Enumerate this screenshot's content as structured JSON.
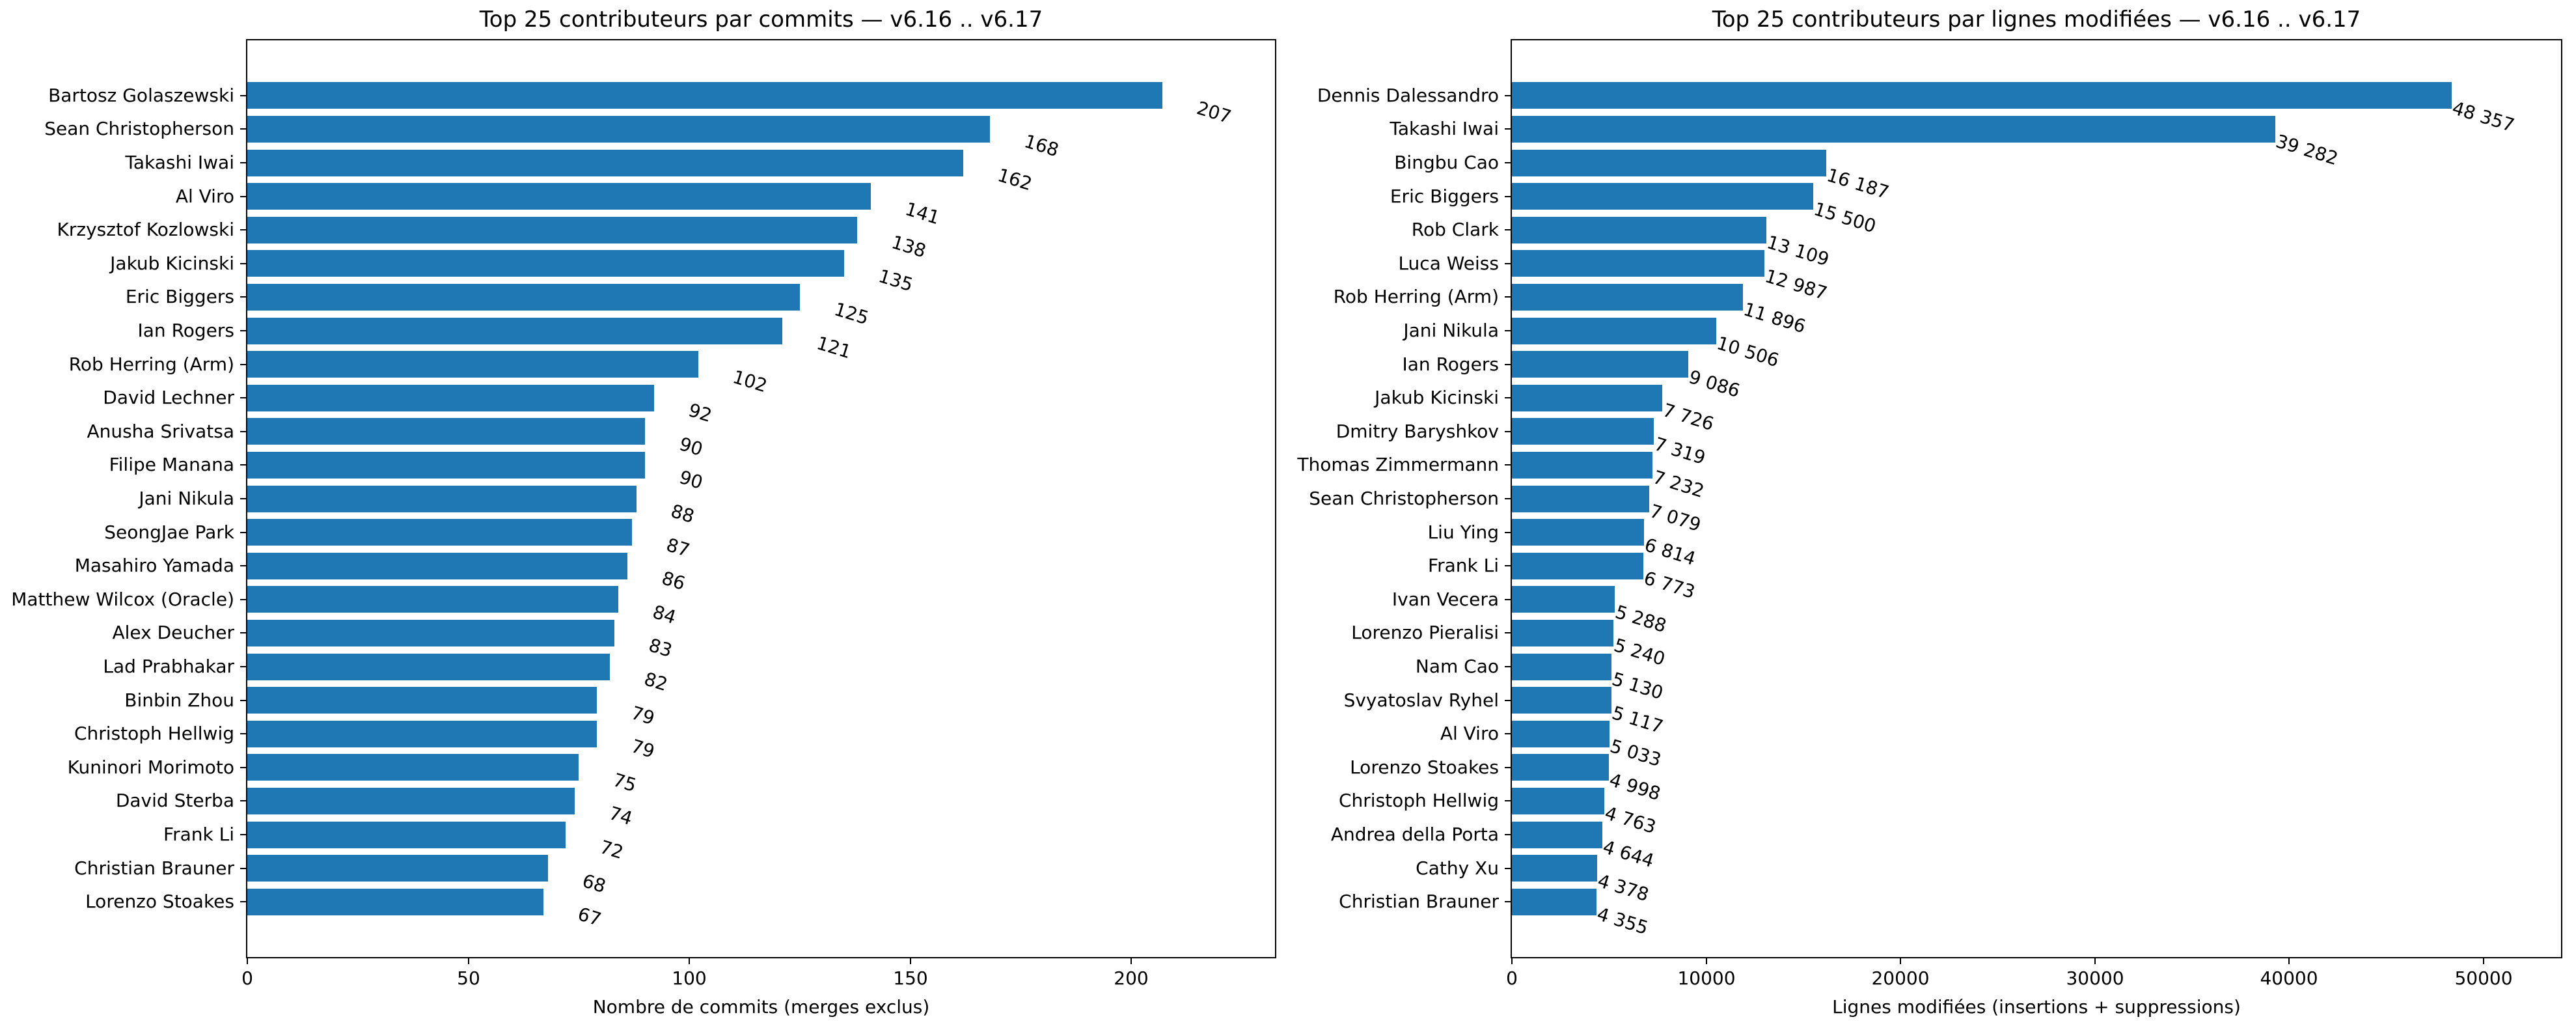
{
  "figure": {
    "background": "#ffffff",
    "text_color": "#000000",
    "spine_color": "#000000"
  },
  "chart_data": [
    {
      "type": "bar",
      "orientation": "horizontal",
      "title": "Top 25 contributeurs par commits — v6.16 .. v6.17",
      "xlabel": "Nombre de commits (merges exclus)",
      "ylabel": "",
      "bar_color": "#1f77b4",
      "grid": false,
      "legend": "none",
      "xlim": [
        0,
        232.5
      ],
      "xticks": [
        0,
        50,
        100,
        150,
        200
      ],
      "xtick_labels": [
        "0",
        "50",
        "100",
        "150",
        "200"
      ],
      "categories": [
        "Bartosz Golaszewski",
        "Sean Christopherson",
        "Takashi Iwai",
        "Al Viro",
        "Krzysztof Kozlowski",
        "Jakub Kicinski",
        "Eric Biggers",
        "Ian Rogers",
        "Rob Herring (Arm)",
        "David Lechner",
        "Anusha Srivatsa",
        "Filipe Manana",
        "Jani Nikula",
        "SeongJae Park",
        "Masahiro Yamada",
        "Matthew Wilcox (Oracle)",
        "Alex Deucher",
        "Lad Prabhakar",
        "Binbin Zhou",
        "Christoph Hellwig",
        "Kuninori Morimoto",
        "David Sterba",
        "Frank Li",
        "Christian Brauner",
        "Lorenzo Stoakes"
      ],
      "values": [
        207,
        168,
        162,
        141,
        138,
        135,
        125,
        121,
        102,
        92,
        90,
        90,
        88,
        87,
        86,
        84,
        83,
        82,
        79,
        79,
        75,
        74,
        72,
        68,
        67
      ],
      "value_labels": [
        "207",
        "168",
        "162",
        "141",
        "138",
        "135",
        "125",
        "121",
        "102",
        "92",
        "90",
        "90",
        "88",
        "87",
        "86",
        "84",
        "83",
        "82",
        "79",
        "79",
        "75",
        "74",
        "72",
        "68",
        "67"
      ]
    },
    {
      "type": "bar",
      "orientation": "horizontal",
      "title": "Top 25 contributeurs par lignes modifiées — v6.16 .. v6.17",
      "xlabel": "Lignes modifiées (insertions + suppressions)",
      "ylabel": "",
      "bar_color": "#1f77b4",
      "grid": false,
      "legend": "none",
      "xlim": [
        0,
        54000
      ],
      "xticks": [
        0,
        10000,
        20000,
        30000,
        40000,
        50000
      ],
      "xtick_labels": [
        "0",
        "10000",
        "20000",
        "30000",
        "40000",
        "50000"
      ],
      "categories": [
        "Dennis Dalessandro",
        "Takashi Iwai",
        "Bingbu Cao",
        "Eric Biggers",
        "Rob Clark",
        "Luca Weiss",
        "Rob Herring (Arm)",
        "Jani Nikula",
        "Ian Rogers",
        "Jakub Kicinski",
        "Dmitry Baryshkov",
        "Thomas Zimmermann",
        "Sean Christopherson",
        "Liu Ying",
        "Frank Li",
        "Ivan Vecera",
        "Lorenzo Pieralisi",
        "Nam Cao",
        "Svyatoslav Ryhel",
        "Al Viro",
        "Lorenzo Stoakes",
        "Christoph Hellwig",
        "Andrea della Porta",
        "Cathy Xu",
        "Christian Brauner"
      ],
      "values": [
        48357,
        39282,
        16187,
        15500,
        13109,
        12987,
        11896,
        10506,
        9086,
        7726,
        7319,
        7232,
        7079,
        6814,
        6773,
        5288,
        5240,
        5130,
        5117,
        5033,
        4998,
        4763,
        4644,
        4378,
        4355
      ],
      "value_labels": [
        "48 357",
        "39 282",
        "16 187",
        "15 500",
        "13 109",
        "12 987",
        "11 896",
        "10 506",
        "9 086",
        "7 726",
        "7 319",
        "7 232",
        "7 079",
        "6 814",
        "6 773",
        "5 288",
        "5 240",
        "5 130",
        "5 117",
        "5 033",
        "4 998",
        "4 763",
        "4 644",
        "4 378",
        "4 355"
      ]
    }
  ]
}
